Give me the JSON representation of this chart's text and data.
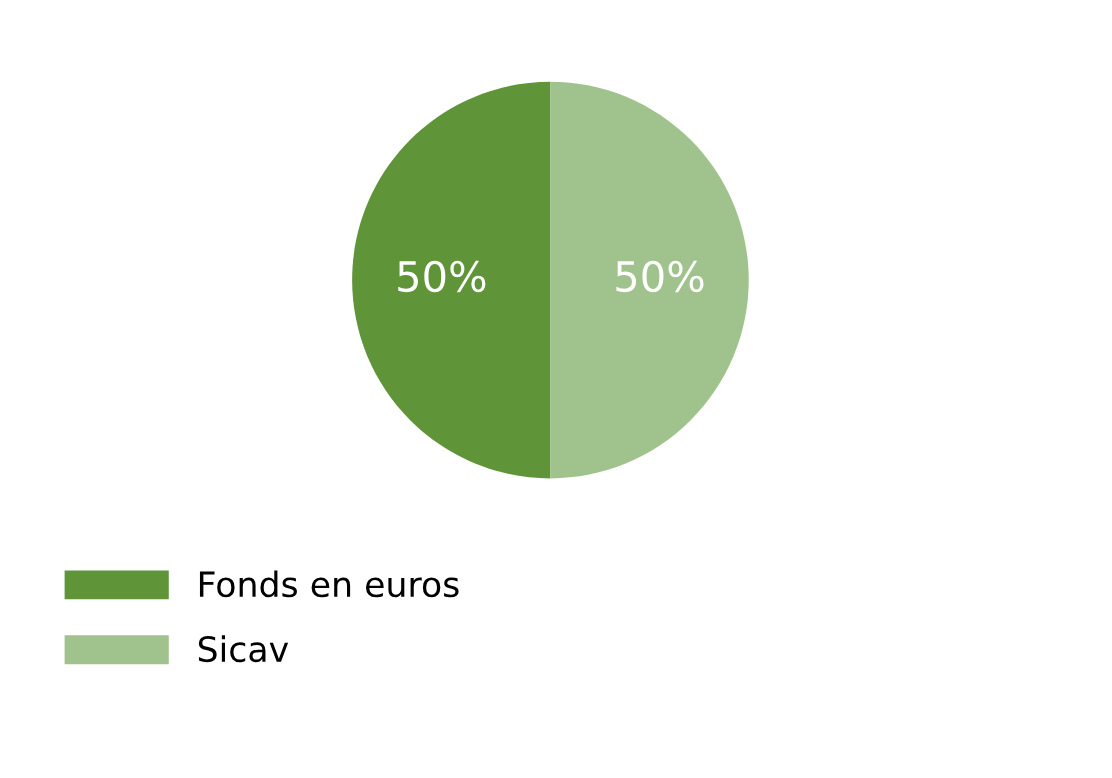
{
  "chart_data": {
    "type": "pie",
    "categories": [
      "Fonds en euros",
      "Sicav"
    ],
    "values": [
      50,
      50
    ],
    "colors": [
      "#5f9439",
      "#a0c38d"
    ],
    "value_labels": [
      "50%",
      "50%"
    ],
    "legend": "bottom left"
  }
}
